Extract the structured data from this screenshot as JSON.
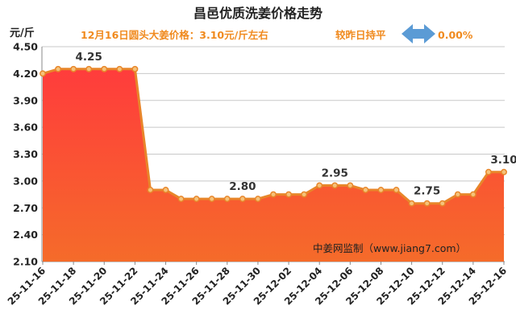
{
  "chart_data": {
    "type": "area",
    "title": "昌邑优质洗姜价格走势",
    "subtitle": "12月16日圆头大姜价格：3.10元/斤左右",
    "change_text": "较昨日持平",
    "change_value": "0.00%",
    "ylabel": "元/斤",
    "ylim": [
      2.1,
      4.5
    ],
    "yticks": [
      "2.10",
      "2.40",
      "2.70",
      "3.00",
      "3.30",
      "3.60",
      "3.90",
      "4.20",
      "4.50"
    ],
    "grid": true,
    "x": [
      "25-11-16",
      "25-11-17",
      "25-11-18",
      "25-11-19",
      "25-11-20",
      "25-11-21",
      "25-11-22",
      "25-11-23",
      "25-11-24",
      "25-11-25",
      "25-11-26",
      "25-11-27",
      "25-11-28",
      "25-11-29",
      "25-11-30",
      "25-12-01",
      "25-12-02",
      "25-12-03",
      "25-12-04",
      "25-12-05",
      "25-12-06",
      "25-12-07",
      "25-12-08",
      "25-12-09",
      "25-12-10",
      "25-12-11",
      "25-12-12",
      "25-12-13",
      "25-12-14",
      "25-12-15",
      "25-12-16"
    ],
    "xtick_labels": [
      "25-11-16",
      "25-11-18",
      "25-11-20",
      "25-11-22",
      "25-11-24",
      "25-11-26",
      "25-11-28",
      "25-11-30",
      "25-12-02",
      "25-12-04",
      "25-12-06",
      "25-12-08",
      "25-12-10",
      "25-12-12",
      "25-12-14",
      "25-12-16"
    ],
    "values": [
      4.2,
      4.25,
      4.25,
      4.25,
      4.25,
      4.25,
      4.25,
      2.9,
      2.9,
      2.8,
      2.8,
      2.8,
      2.8,
      2.8,
      2.8,
      2.85,
      2.85,
      2.85,
      2.95,
      2.95,
      2.95,
      2.9,
      2.9,
      2.9,
      2.75,
      2.75,
      2.75,
      2.85,
      2.85,
      3.1,
      3.1
    ],
    "data_labels": [
      {
        "index": 3,
        "text": "4.25"
      },
      {
        "index": 13,
        "text": "2.80"
      },
      {
        "index": 19,
        "text": "2.95"
      },
      {
        "index": 25,
        "text": "2.75"
      },
      {
        "index": 30,
        "text": "3.10"
      }
    ],
    "watermark": "中姜网监制（www.jiang7.com）",
    "colors": {
      "area_top": "#ff3c3c",
      "area_bottom": "#f56b2a",
      "line": "#e8862a",
      "marker_fill": "#f5c27a",
      "arrow": "#5b9bd5",
      "grid": "#c8c8c8"
    }
  }
}
